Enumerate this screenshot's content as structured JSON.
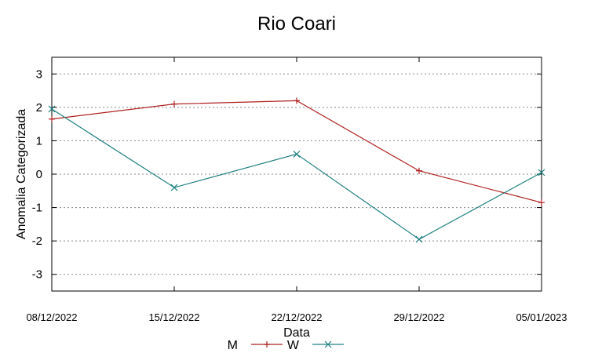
{
  "chart_data": {
    "type": "line",
    "title": "Rio Coari",
    "xlabel": "Data",
    "ylabel": "Anomalia Categorizada",
    "categories": [
      "08/12/2022",
      "15/12/2022",
      "22/12/2022",
      "29/12/2022",
      "05/01/2023"
    ],
    "ylim": [
      -3.5,
      3.5
    ],
    "yticks": [
      -3,
      -2,
      -1,
      0,
      1,
      2,
      3
    ],
    "grid": true,
    "legend_position": "bottom-center",
    "series": [
      {
        "name": "M",
        "color": "#b02020",
        "marker": "plus",
        "values": [
          1.65,
          2.1,
          2.2,
          0.1,
          -0.85
        ]
      },
      {
        "name": "W",
        "color": "#208080",
        "marker": "cross",
        "values": [
          1.95,
          -0.4,
          0.6,
          -1.95,
          0.05
        ]
      }
    ]
  }
}
